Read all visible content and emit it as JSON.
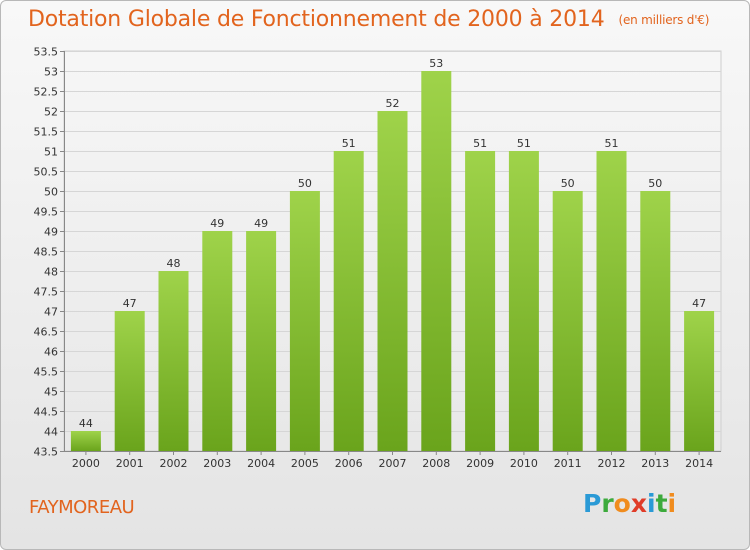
{
  "chart_data": {
    "type": "bar",
    "title": "Dotation Globale de Fonctionnement de 2000 à 2014",
    "subtitle": "(en milliers d'€)",
    "categories": [
      "2000",
      "2001",
      "2002",
      "2003",
      "2004",
      "2005",
      "2006",
      "2007",
      "2008",
      "2009",
      "2010",
      "2011",
      "2012",
      "2013",
      "2014"
    ],
    "values": [
      44,
      47,
      48,
      49,
      49,
      50,
      51,
      52,
      53,
      51,
      51,
      50,
      51,
      50,
      47
    ],
    "ylim": [
      43.5,
      53.5
    ],
    "ytick_step": 0.5,
    "grid": true,
    "bar_color": "#8cc43c",
    "xlabel": "",
    "ylabel": ""
  },
  "commune": "FAYMOREAU",
  "logo": {
    "letters": [
      "P",
      "r",
      "o",
      "x",
      "i",
      "t",
      "i"
    ],
    "colors": [
      "#2a9ad6",
      "#3caa3c",
      "#f08c1e",
      "#e03c28",
      "#2a9ad6",
      "#3caa3c",
      "#f08c1e"
    ]
  },
  "colors": {
    "title": "#e2641e",
    "accent": "#e2641e"
  }
}
